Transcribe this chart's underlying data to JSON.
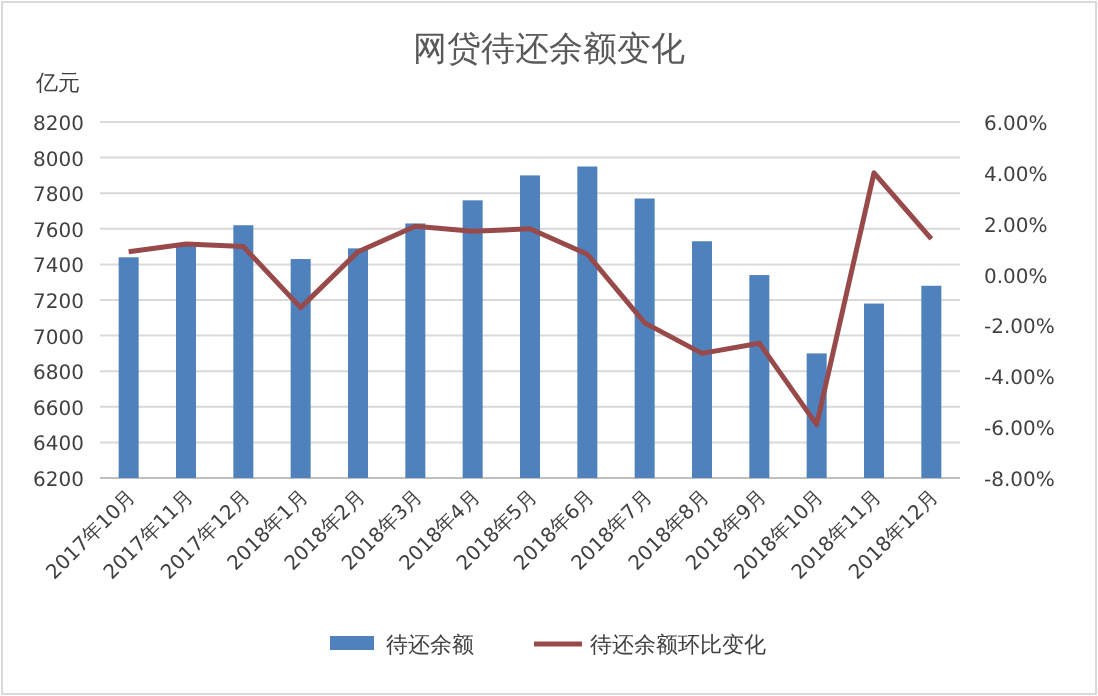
{
  "chart_data": {
    "type": "bar",
    "title": "网贷待还余额变化",
    "ylabel": "亿元",
    "categories": [
      "2017年10月",
      "2017年11月",
      "2017年12月",
      "2018年1月",
      "2018年2月",
      "2018年3月",
      "2018年4月",
      "2018年5月",
      "2018年6月",
      "2018年7月",
      "2018年8月",
      "2018年9月",
      "2018年10月",
      "2018年11月",
      "2018年12月"
    ],
    "series": [
      {
        "name": "待还余额",
        "color": "#4f81bd",
        "values": [
          7440,
          7520,
          7620,
          7430,
          7490,
          7630,
          7760,
          7900,
          7950,
          7770,
          7530,
          7340,
          6900,
          7180,
          7280
        ]
      },
      {
        "name": "待还余额环比变化",
        "type": "line",
        "axis": "y2",
        "color": "#984a4a",
        "values": [
          0.9,
          1.2,
          1.1,
          -1.3,
          0.9,
          1.9,
          1.7,
          1.8,
          0.8,
          -1.9,
          -3.1,
          -2.7,
          -5.9,
          4.0,
          1.4
        ]
      }
    ],
    "ylim": [
      6200,
      8200
    ],
    "yticks": [
      6200,
      6400,
      6600,
      6800,
      7000,
      7200,
      7400,
      7600,
      7800,
      8000,
      8200
    ],
    "y2lim": [
      -8,
      6
    ],
    "y2ticks": [
      {
        "value": -8,
        "label": "-8.00%"
      },
      {
        "value": -6,
        "label": "-6.00%"
      },
      {
        "value": -4,
        "label": "-4.00%"
      },
      {
        "value": -2,
        "label": "-2.00%"
      },
      {
        "value": 0,
        "label": "0.00%"
      },
      {
        "value": 2,
        "label": "2.00%"
      },
      {
        "value": 4,
        "label": "4.00%"
      },
      {
        "value": 6,
        "label": "6.00%"
      }
    ],
    "grid": "y",
    "legend": "bottom",
    "marker": "none"
  }
}
